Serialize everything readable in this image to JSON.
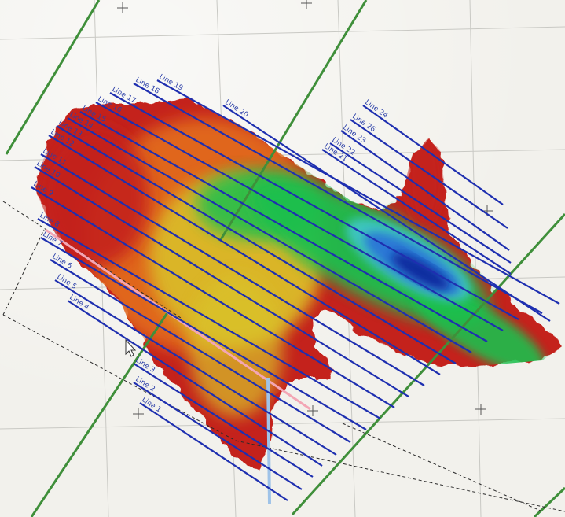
{
  "view": {
    "background_color": "#f2f1ec",
    "grid_color": "#c9c9c4",
    "frame_color": "#3f8f3a",
    "survey_line_color": "#1e2fb0",
    "dashed_boundary_color": "#2a2a2a",
    "cross_marker_color": "#555555",
    "pink_line_color": "#f3a6b5",
    "light_blue_line_color": "#9fc3e8"
  },
  "heatmap": {
    "colors": {
      "deep": "#0a2a9e",
      "blue": "#2b78d6",
      "cyan": "#3fc6c4",
      "green": "#1fbf4e",
      "yellow": "#d9c32b",
      "orange": "#e0661f",
      "red": "#c4241e"
    }
  },
  "survey_lines": [
    {
      "label": "Line 1"
    },
    {
      "label": "Line 2"
    },
    {
      "label": "Line 3"
    },
    {
      "label": "Line 4"
    },
    {
      "label": "Line 5"
    },
    {
      "label": "Line 6"
    },
    {
      "label": "Line 7"
    },
    {
      "label": "Line 8"
    },
    {
      "label": "Line 9"
    },
    {
      "label": "Line 10"
    },
    {
      "label": "Line 11"
    },
    {
      "label": "Line 12"
    },
    {
      "label": "Line 13"
    },
    {
      "label": "Line 14"
    },
    {
      "label": "Line 15"
    },
    {
      "label": "Line 16"
    },
    {
      "label": "Line 17"
    },
    {
      "label": "Line 18"
    },
    {
      "label": "Line 19"
    },
    {
      "label": "Line 20"
    },
    {
      "label": "Line 21"
    },
    {
      "label": "Line 22"
    },
    {
      "label": "Line 23"
    },
    {
      "label": "Line 24"
    },
    {
      "label": "Line 26"
    }
  ]
}
